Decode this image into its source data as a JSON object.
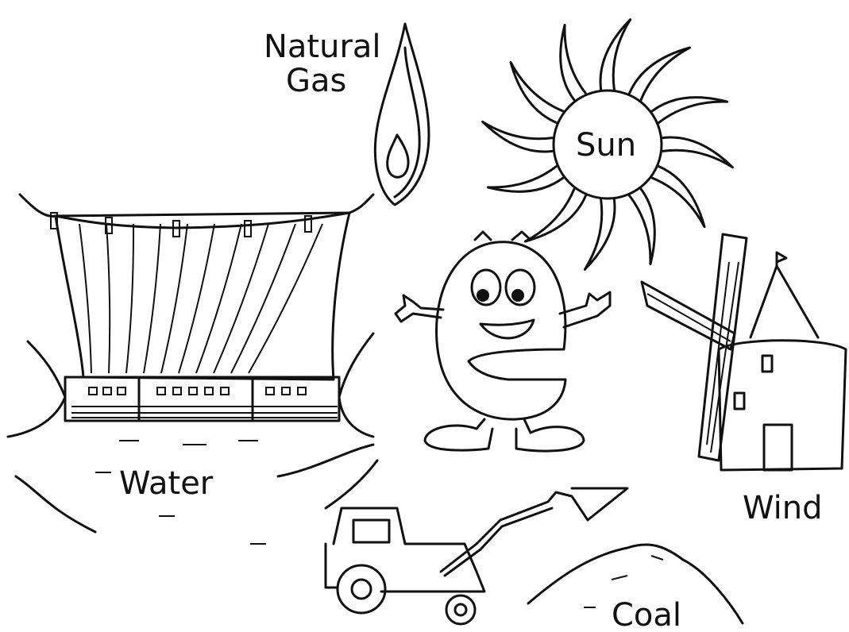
{
  "natural_gas": [
    "Natural",
    "Gas"
  ],
  "sun": "Sun",
  "water": "Water",
  "wind": "Wind",
  "coal": "Coal"
}
